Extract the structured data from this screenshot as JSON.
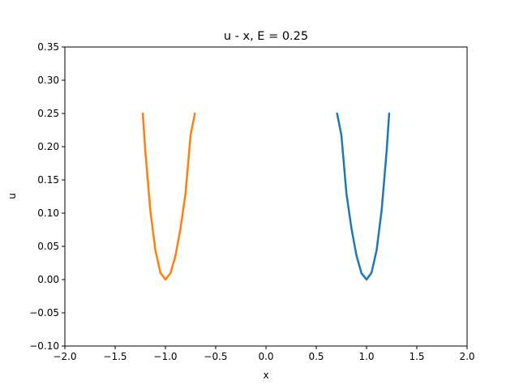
{
  "chart_data": {
    "type": "line",
    "title": "u - x, E = 0.25",
    "xlabel": "x",
    "ylabel": "u",
    "xlim": [
      -2.0,
      2.0
    ],
    "ylim": [
      -0.1,
      0.35
    ],
    "grid": false,
    "x_ticks": [
      "−2.0",
      "−1.5",
      "−1.0",
      "−0.5",
      "0.0",
      "0.5",
      "1.0",
      "1.5",
      "2.0"
    ],
    "y_ticks": [
      "−0.10",
      "−0.05",
      "0.00",
      "0.05",
      "0.10",
      "0.15",
      "0.20",
      "0.25",
      "0.30",
      "0.35"
    ],
    "series": [
      {
        "color": "#1f77b4",
        "points": [
          [
            0.707,
            0.25
          ],
          [
            0.75,
            0.2173
          ],
          [
            0.8,
            0.1296
          ],
          [
            0.85,
            0.077
          ],
          [
            0.9,
            0.0361
          ],
          [
            0.95,
            0.0095
          ],
          [
            1.0,
            0.0
          ],
          [
            1.05,
            0.0105
          ],
          [
            1.1,
            0.0441
          ],
          [
            1.15,
            0.104
          ],
          [
            1.2,
            0.1936
          ],
          [
            1.225,
            0.25
          ]
        ]
      },
      {
        "color": "#ff7f0e",
        "points": [
          [
            -1.225,
            0.25
          ],
          [
            -1.2,
            0.1936
          ],
          [
            -1.15,
            0.104
          ],
          [
            -1.1,
            0.0441
          ],
          [
            -1.05,
            0.0105
          ],
          [
            -1.0,
            0.0
          ],
          [
            -0.95,
            0.0095
          ],
          [
            -0.9,
            0.0361
          ],
          [
            -0.85,
            0.077
          ],
          [
            -0.8,
            0.1296
          ],
          [
            -0.75,
            0.2173
          ],
          [
            -0.707,
            0.25
          ]
        ]
      }
    ]
  }
}
